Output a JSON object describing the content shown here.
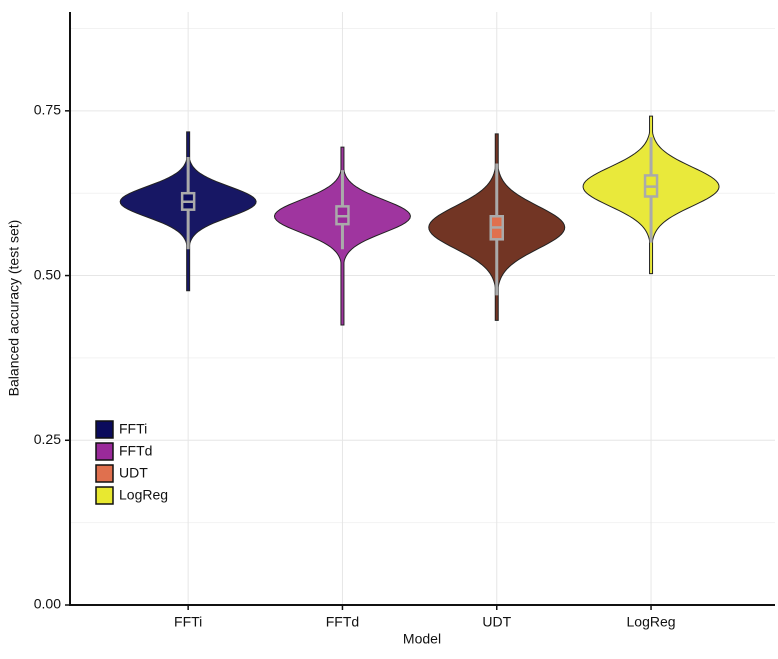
{
  "chart_data": {
    "type": "violin",
    "x_label": "Model",
    "y_label": "Balanced accuracy (test set)",
    "categories": [
      "FFTi",
      "FFTd",
      "UDT",
      "LogReg"
    ],
    "series": [
      {
        "name": "FFTi",
        "color": "#0b0b5c",
        "min": 0.477,
        "whisker_low": 0.54,
        "q1": 0.6,
        "median": 0.612,
        "q3": 0.625,
        "whisker_high": 0.68,
        "max": 0.718
      },
      {
        "name": "FFTd",
        "color": "#9a2a9a",
        "min": 0.425,
        "whisker_low": 0.54,
        "q1": 0.578,
        "median": 0.59,
        "q3": 0.605,
        "whisker_high": 0.66,
        "max": 0.695
      },
      {
        "name": "UDT",
        "color": "#e0704e",
        "min": 0.432,
        "whisker_low": 0.47,
        "q1": 0.555,
        "median": 0.573,
        "q3": 0.59,
        "whisker_high": 0.67,
        "max": 0.715
      },
      {
        "name": "LogReg",
        "color": "#e8e830",
        "min": 0.503,
        "whisker_low": 0.55,
        "q1": 0.62,
        "median": 0.635,
        "q3": 0.652,
        "whisker_high": 0.71,
        "max": 0.742
      }
    ],
    "ylim": [
      0,
      0.9
    ],
    "yticks": [
      {
        "value": 0,
        "label": "0.00"
      },
      {
        "value": 0.25,
        "label": "0.25"
      },
      {
        "value": 0.5,
        "label": "0.50"
      },
      {
        "value": 0.75,
        "label": "0.75"
      }
    ],
    "minor_yticks": [
      0.125,
      0.375,
      0.625,
      0.875
    ],
    "grid": true,
    "legend_position": "bottom-left"
  }
}
